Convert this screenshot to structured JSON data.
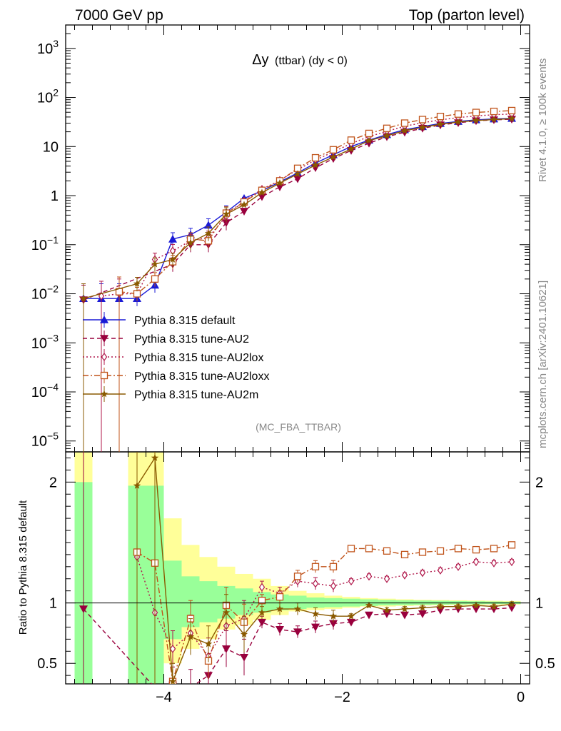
{
  "header": {
    "left": "7000 GeV pp",
    "right": "Top (parton level)"
  },
  "side": {
    "rivet": "Rivet 4.1.0, ≥ 100k events",
    "mcplots": "mcplots.cern.ch [arXiv:2401.10621]"
  },
  "chart_data": {
    "type": "line",
    "title": "Δy (ttbar) (dy < 0)",
    "title_main": "Δy",
    "title_rest": "(ttbar) (dy < 0)",
    "analysis": "(MC_FBA_TTBAR)",
    "ratio_ylabel": "Ratio to Pythia 8.315 default",
    "main_ylim": [
      6e-06,
      3000
    ],
    "ratio_ylim": [
      0.33,
      2.25
    ],
    "xlim": [
      -5.1,
      0.1
    ],
    "x_ticks": [
      -4,
      -2,
      0
    ],
    "x_tick_labels": [
      "−4",
      "−2",
      "0"
    ],
    "main_y_ticks": [
      {
        "v": 1e-05,
        "base": "10",
        "exp": "−5"
      },
      {
        "v": 0.0001,
        "base": "10",
        "exp": "−4"
      },
      {
        "v": 0.001,
        "base": "10",
        "exp": "−3"
      },
      {
        "v": 0.01,
        "base": "10",
        "exp": "−2"
      },
      {
        "v": 0.1,
        "base": "10",
        "exp": "−1"
      },
      {
        "v": 1,
        "base": "1",
        "exp": ""
      },
      {
        "v": 10,
        "base": "10",
        "exp": ""
      },
      {
        "v": 100,
        "base": "10",
        "exp": "2"
      },
      {
        "v": 1000,
        "base": "10",
        "exp": "3"
      }
    ],
    "ratio_y_ticks": [
      {
        "v": 0.5,
        "label": "0.5"
      },
      {
        "v": 1,
        "label": "1"
      },
      {
        "v": 2,
        "label": "2"
      }
    ],
    "x": [
      -4.9,
      -4.7,
      -4.5,
      -4.3,
      -4.1,
      -3.9,
      -3.7,
      -3.5,
      -3.3,
      -3.1,
      -2.9,
      -2.7,
      -2.5,
      -2.3,
      -2.1,
      -1.9,
      -1.7,
      -1.5,
      -1.3,
      -1.1,
      -0.9,
      -0.7,
      -0.5,
      -0.3,
      -0.1
    ],
    "series": [
      {
        "name": "Pythia 8.315 default",
        "color": "#1a1ad6",
        "dash": "",
        "marker": "tri-up",
        "values": [
          0.008,
          0.008,
          0.008,
          0.008,
          0.015,
          0.13,
          0.16,
          0.25,
          0.46,
          0.88,
          1.25,
          1.9,
          2.9,
          4.6,
          6.8,
          10.0,
          13.5,
          17.5,
          22.0,
          25.5,
          29.5,
          32.5,
          35.0,
          36.5,
          37.5
        ]
      },
      {
        "name": "Pythia 8.315 tune-AU2",
        "color": "#99003d",
        "dash": "6,4",
        "marker": "tri-down",
        "values": [
          0.0075,
          null,
          null,
          null,
          null,
          0.04,
          0.1,
          0.1,
          0.28,
          0.48,
          0.95,
          1.5,
          2.2,
          3.7,
          5.7,
          8.3,
          11.7,
          15.8,
          19.5,
          23.5,
          27.5,
          30.5,
          33.5,
          35.0,
          36.0
        ]
      },
      {
        "name": "Pythia 8.315 tune-AU2lox",
        "color": "#b0174a",
        "dash": "2,3",
        "marker": "diamond",
        "values": [
          null,
          0.009,
          0.01,
          0.01,
          0.05,
          0.075,
          0.12,
          0.14,
          0.38,
          0.78,
          1.35,
          2.05,
          3.4,
          5.3,
          7.8,
          11.5,
          16.0,
          20.5,
          26.0,
          30.5,
          35.0,
          39.0,
          42.0,
          44.5,
          46.0
        ]
      },
      {
        "name": "Pythia 8.315 tune-AU2loxx",
        "color": "#c0531a",
        "dash": "8,3,2,3",
        "marker": "square",
        "values": [
          null,
          null,
          0.011,
          0.01,
          0.02,
          0.045,
          0.13,
          0.12,
          0.44,
          0.74,
          1.28,
          2.0,
          3.6,
          5.9,
          8.6,
          13.5,
          18.5,
          23.5,
          30.0,
          35.5,
          41.0,
          46.0,
          49.5,
          52.0,
          54.0
        ]
      },
      {
        "name": "Pythia 8.315 tune-AU2m",
        "color": "#8a5a00",
        "dash": "",
        "marker": "star",
        "values": [
          0.008,
          null,
          null,
          0.016,
          0.04,
          0.05,
          0.11,
          0.17,
          0.42,
          0.65,
          1.15,
          1.8,
          2.75,
          4.2,
          6.1,
          8.9,
          13.2,
          16.5,
          21.0,
          24.5,
          28.5,
          31.5,
          34.0,
          35.5,
          37.0
        ]
      }
    ],
    "ratio_series": [
      {
        "name": "Pythia 8.315 tune-AU2",
        "values": [
          0.95,
          null,
          null,
          null,
          0.3,
          0.32,
          0.3,
          0.4,
          0.62,
          0.55,
          0.84,
          0.78,
          0.76,
          0.8,
          0.83,
          0.84,
          0.9,
          0.91,
          0.9,
          0.91,
          0.94,
          0.95,
          0.95,
          0.95,
          0.96
        ]
      },
      {
        "name": "Pythia 8.315 tune-AU2lox",
        "values": [
          null,
          null,
          null,
          1.38,
          0.92,
          0.62,
          0.75,
          0.56,
          0.81,
          0.87,
          1.13,
          1.08,
          1.18,
          1.16,
          1.14,
          1.18,
          1.22,
          1.2,
          1.23,
          1.25,
          1.27,
          1.3,
          1.34,
          1.33,
          1.34
        ]
      },
      {
        "name": "Pythia 8.315 tune-AU2loxx",
        "values": [
          null,
          null,
          null,
          1.42,
          1.33,
          0.35,
          0.87,
          0.52,
          0.98,
          0.84,
          1.02,
          1.05,
          1.22,
          1.3,
          1.3,
          1.45,
          1.45,
          1.43,
          1.4,
          1.42,
          1.43,
          1.45,
          1.44,
          1.45,
          1.48
        ]
      },
      {
        "name": "Pythia 8.315 tune-AU2m",
        "values": [
          null,
          null,
          null,
          1.97,
          2.2,
          0.35,
          0.72,
          0.66,
          0.92,
          0.74,
          0.92,
          0.95,
          0.95,
          0.91,
          0.89,
          0.89,
          0.98,
          0.94,
          0.95,
          0.96,
          0.97,
          0.97,
          0.98,
          0.97,
          0.99
        ]
      }
    ],
    "band_edges": [
      -5.0,
      -4.8,
      -4.4,
      -4.2,
      -4.0,
      -3.8,
      -3.6,
      -3.4,
      -3.2,
      -3.0,
      -2.8,
      -2.6,
      -2.4,
      -2.2,
      -2.0,
      -1.8,
      -1.6,
      -1.4,
      -1.2,
      -1.0,
      -0.8,
      -0.6,
      -0.4,
      -0.2,
      0.0
    ],
    "band_yellow": [
      [
        0.3,
        2.25
      ],
      null,
      [
        0.3,
        2.25
      ],
      [
        0.3,
        2.25
      ],
      [
        0.5,
        1.7
      ],
      [
        0.62,
        1.48
      ],
      [
        0.7,
        1.38
      ],
      [
        0.78,
        1.3
      ],
      [
        0.82,
        1.24
      ],
      [
        0.86,
        1.2
      ],
      [
        0.9,
        1.14
      ],
      [
        0.93,
        1.1
      ],
      [
        0.94,
        1.08
      ],
      [
        0.95,
        1.06
      ],
      [
        0.96,
        1.05
      ],
      [
        0.97,
        1.04
      ],
      [
        0.97,
        1.035
      ],
      [
        0.975,
        1.03
      ],
      [
        0.978,
        1.026
      ],
      [
        0.98,
        1.024
      ],
      [
        0.982,
        1.022
      ],
      [
        0.984,
        1.02
      ],
      [
        0.986,
        1.018
      ],
      [
        0.987,
        1.016
      ]
    ],
    "band_green": [
      [
        0.3,
        2.0
      ],
      null,
      [
        0.3,
        1.97
      ],
      [
        0.3,
        1.97
      ],
      [
        0.7,
        1.35
      ],
      [
        0.8,
        1.22
      ],
      [
        0.84,
        1.18
      ],
      [
        0.87,
        1.14
      ],
      [
        0.9,
        1.12
      ],
      [
        0.92,
        1.09
      ],
      [
        0.94,
        1.07
      ],
      [
        0.95,
        1.06
      ],
      [
        0.96,
        1.045
      ],
      [
        0.965,
        1.04
      ],
      [
        0.97,
        1.035
      ],
      [
        0.975,
        1.03
      ],
      [
        0.98,
        1.025
      ],
      [
        0.982,
        1.022
      ],
      [
        0.984,
        1.02
      ],
      [
        0.986,
        1.018
      ],
      [
        0.988,
        1.016
      ],
      [
        0.99,
        1.014
      ],
      [
        0.991,
        1.012
      ],
      [
        0.992,
        1.01
      ]
    ]
  }
}
